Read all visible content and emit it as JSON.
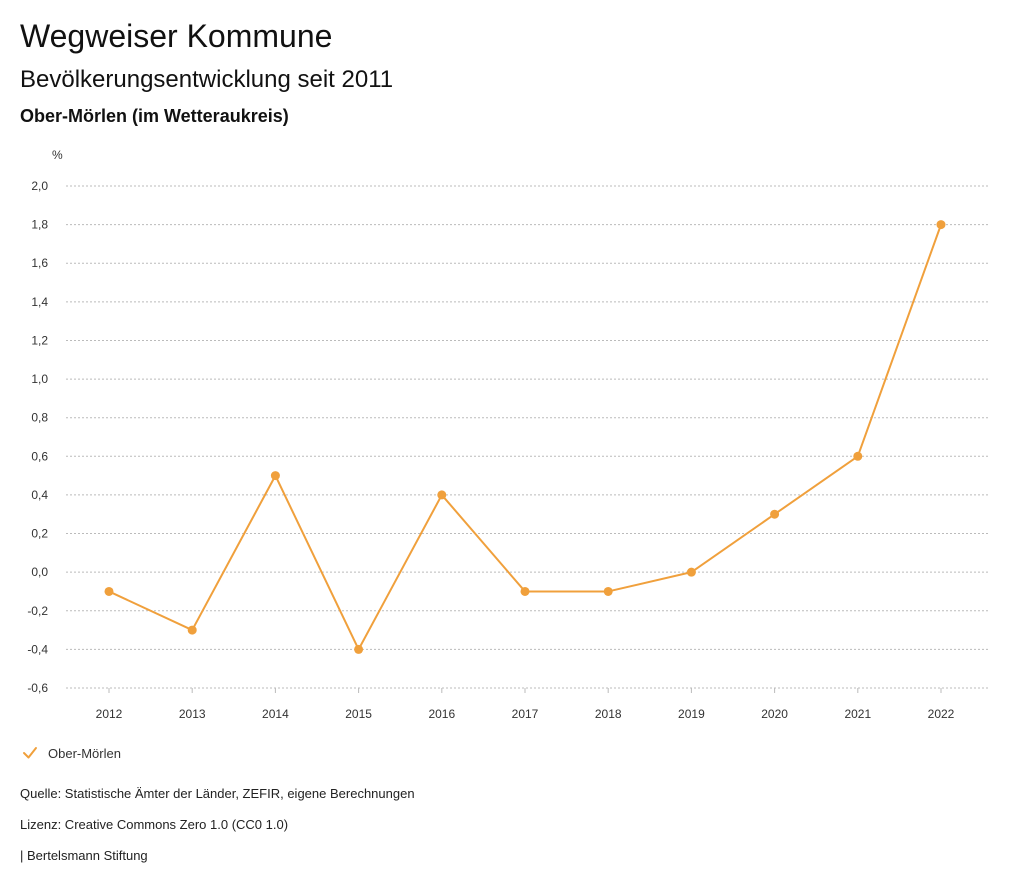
{
  "header": {
    "title": "Wegweiser Kommune",
    "subtitle": "Bevölkerungsentwicklung seit 2011",
    "place": "Ober-Mörlen (im Wetteraukreis)"
  },
  "colors": {
    "series": "#f0a03c",
    "grid": "#bbbbbb",
    "text": "#333333"
  },
  "chart_data": {
    "type": "line",
    "title": "Bevölkerungsentwicklung seit 2011",
    "ylabel": "%",
    "xlabel": "",
    "categories": [
      "2012",
      "2013",
      "2014",
      "2015",
      "2016",
      "2017",
      "2018",
      "2019",
      "2020",
      "2021",
      "2022"
    ],
    "series": [
      {
        "name": "Ober-Mörlen",
        "values": [
          -0.1,
          -0.3,
          0.5,
          -0.4,
          0.4,
          -0.1,
          -0.1,
          0.0,
          0.3,
          0.6,
          1.8
        ]
      }
    ],
    "ylim": [
      -0.6,
      2.0
    ],
    "yticks": [
      2.0,
      1.8,
      1.6,
      1.4,
      1.2,
      1.0,
      0.8,
      0.6,
      0.4,
      0.2,
      0.0,
      -0.2,
      -0.4,
      -0.6
    ],
    "ytick_labels": [
      "2,0",
      "1,8",
      "1,6",
      "1,4",
      "1,2",
      "1,0",
      "0,8",
      "0,6",
      "0,4",
      "0,2",
      "0,0",
      "-0,2",
      "-0,4",
      "-0,6"
    ],
    "grid": true,
    "legend": "bottom-left"
  },
  "legend": {
    "label": "Ober-Mörlen",
    "icon": "check-icon"
  },
  "footer": {
    "source": "Quelle: Statistische Ämter der Länder, ZEFIR, eigene Berechnungen",
    "license": "Lizenz: Creative Commons Zero 1.0 (CC0 1.0)",
    "org": "| Bertelsmann Stiftung"
  }
}
